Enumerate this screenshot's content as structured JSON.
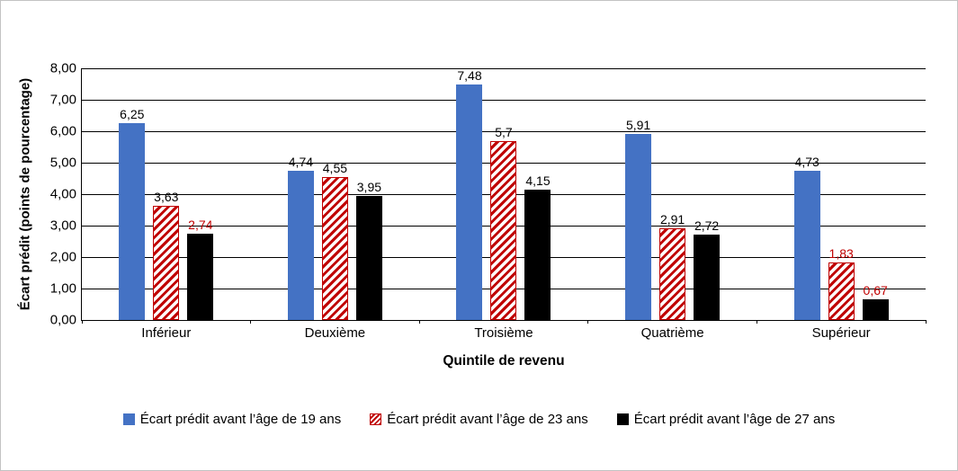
{
  "chart_data": {
    "type": "bar",
    "title": "",
    "xlabel": "Quintile de revenu",
    "ylabel": "Écart prédit (points de pourcentage)",
    "ylim": [
      0,
      8
    ],
    "ytick_step": 1,
    "ytick_labels": [
      "0,00",
      "1,00",
      "2,00",
      "3,00",
      "4,00",
      "5,00",
      "6,00",
      "7,00",
      "8,00"
    ],
    "grid": true,
    "legend_position": "bottom",
    "categories": [
      "Inférieur",
      "Deuxième",
      "Troisième",
      "Quatrième",
      "Supérieur"
    ],
    "series": [
      {
        "name": "Écart prédit avant l’âge de 19 ans",
        "pattern": "solid",
        "color": "#4472C4",
        "values": [
          6.25,
          4.74,
          7.48,
          5.91,
          4.73
        ],
        "labels": [
          "6,25",
          "4,74",
          "7,48",
          "5,91",
          "4,73"
        ],
        "label_colors": [
          "#000000",
          "#000000",
          "#000000",
          "#000000",
          "#000000"
        ]
      },
      {
        "name": "Écart prédit avant l’âge de 23 ans",
        "pattern": "hatch",
        "color": "#C00000",
        "values": [
          3.63,
          4.55,
          5.7,
          2.91,
          1.83
        ],
        "labels": [
          "3,63",
          "4,55",
          "5,7",
          "2,91",
          "1,83"
        ],
        "label_colors": [
          "#000000",
          "#000000",
          "#000000",
          "#000000",
          "#C00000"
        ]
      },
      {
        "name": "Écart prédit avant l’âge de 27 ans",
        "pattern": "solid",
        "color": "#000000",
        "values": [
          2.74,
          3.95,
          4.15,
          2.72,
          0.67
        ],
        "labels": [
          "2,74",
          "3,95",
          "4,15",
          "2,72",
          "0,67"
        ],
        "label_colors": [
          "#C00000",
          "#000000",
          "#000000",
          "#000000",
          "#C00000"
        ]
      }
    ]
  }
}
